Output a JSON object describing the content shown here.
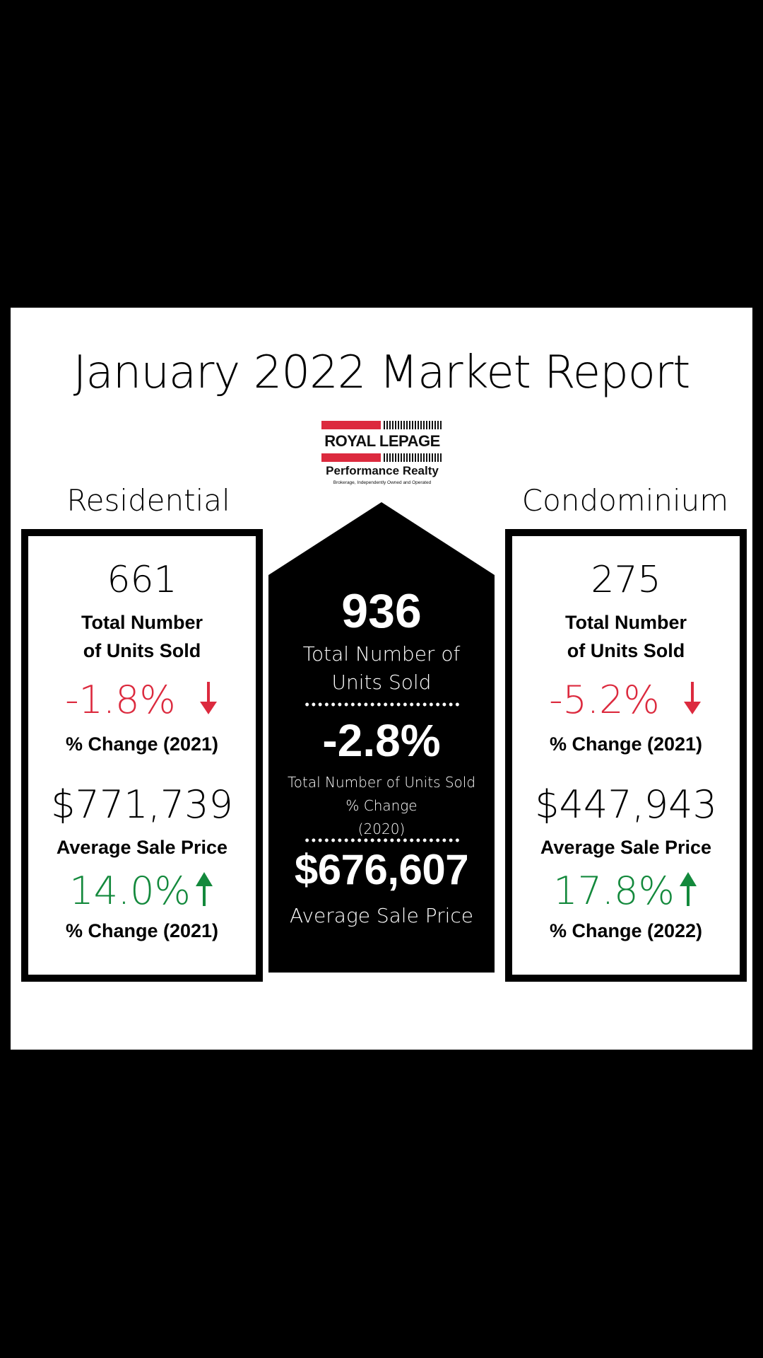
{
  "title": "January 2022 Market Report",
  "logo": {
    "brand": "ROYAL LEPAGE",
    "subtitle": "Performance Realty",
    "tagline": "Brokerage, Independently Owned and Operated"
  },
  "residential": {
    "label": "Residential",
    "units": "661",
    "units_label_1": "Total Number",
    "units_label_2": "of Units Sold",
    "units_change": "-1.8%",
    "units_change_direction": "down",
    "units_change_label": "% Change (2021)",
    "avg_price": "$771,739",
    "avg_price_label": "Average Sale Price",
    "price_change": "14.0%",
    "price_change_direction": "up",
    "price_change_label": "% Change (2021)"
  },
  "total": {
    "units": "936",
    "units_label_1": "Total Number of",
    "units_label_2": "Units Sold",
    "change": "-2.8%",
    "change_label_1": "Total Number of Units Sold",
    "change_label_2": "% Change",
    "change_label_3": "(2020)",
    "avg_price": "$676,607",
    "avg_price_label": "Average Sale Price"
  },
  "condominium": {
    "label": "Condominium",
    "units": "275",
    "units_label_1": "Total Number",
    "units_label_2": "of Units Sold",
    "units_change": "-5.2%",
    "units_change_direction": "down",
    "units_change_label": "% Change (2021)",
    "avg_price": "$447,943",
    "avg_price_label": "Average Sale Price",
    "price_change": "17.8%",
    "price_change_direction": "up",
    "price_change_label": "% Change (2022)"
  },
  "colors": {
    "negative": "#dc2a3e",
    "positive": "#13893c",
    "brand_red": "#dc2a3e"
  }
}
